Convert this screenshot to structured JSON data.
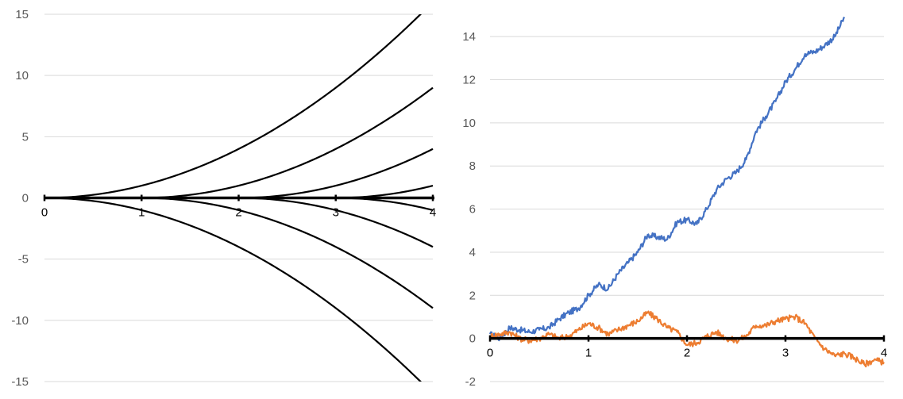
{
  "chart_data": [
    {
      "type": "line",
      "title": "",
      "xlabel": "",
      "ylabel": "",
      "xlim": [
        0,
        4
      ],
      "ylim": [
        -15,
        15
      ],
      "y_ticks": [
        15,
        10,
        5,
        0,
        -5,
        -10,
        -15
      ],
      "x_ticks": [
        0,
        1,
        2,
        3,
        4
      ],
      "grid": "horizontal",
      "legend": "none",
      "axis_color": "#000000",
      "series_color": "#000000",
      "series": [
        {
          "upward": true,
          "start": 0,
          "values_at_x": {
            "0": 0,
            "1": 1,
            "2": 4,
            "3": 9,
            "3.87": 15
          }
        },
        {
          "upward": true,
          "start": 1,
          "values_at_x": {
            "1": 0,
            "2": 1,
            "3": 4,
            "4": 9
          }
        },
        {
          "upward": true,
          "start": 2,
          "values_at_x": {
            "2": 0,
            "3": 1,
            "4": 4
          }
        },
        {
          "upward": true,
          "start": 3,
          "values_at_x": {
            "3": 0,
            "4": 1
          }
        },
        {
          "upward": false,
          "start": 3,
          "values_at_x": {
            "3": 0,
            "4": -1
          }
        },
        {
          "upward": false,
          "start": 2,
          "values_at_x": {
            "2": 0,
            "3": -1,
            "4": -4
          }
        },
        {
          "upward": false,
          "start": 1,
          "values_at_x": {
            "1": 0,
            "2": -1,
            "3": -4,
            "4": -9
          }
        },
        {
          "upward": false,
          "start": 0,
          "values_at_x": {
            "0": 0,
            "1": -1,
            "2": -4,
            "3": -9,
            "3.87": -15
          }
        }
      ]
    },
    {
      "type": "line",
      "title": "",
      "xlabel": "",
      "ylabel": "",
      "xlim": [
        0,
        4
      ],
      "ylim": [
        -2,
        15
      ],
      "y_ticks": [
        14,
        12,
        10,
        8,
        6,
        4,
        2,
        0,
        -2
      ],
      "x_ticks": [
        0,
        1,
        2,
        3,
        4
      ],
      "grid": "horizontal",
      "legend": "none",
      "axis_color": "#000000",
      "series": [
        {
          "color": "#4472C4",
          "x": [
            0,
            0.1,
            0.2,
            0.3,
            0.4,
            0.5,
            0.6,
            0.7,
            0.8,
            0.9,
            1.0,
            1.1,
            1.2,
            1.3,
            1.4,
            1.5,
            1.6,
            1.7,
            1.8,
            1.9,
            2.0,
            2.1,
            2.2,
            2.3,
            2.4,
            2.5,
            2.6,
            2.7,
            2.8,
            2.9,
            3.0,
            3.1,
            3.2,
            3.3,
            3.4,
            3.5,
            3.6
          ],
          "y": [
            0.2,
            0.0,
            0.5,
            0.4,
            0.3,
            0.4,
            0.5,
            0.9,
            1.2,
            1.4,
            2.0,
            2.5,
            2.3,
            3.0,
            3.5,
            4.0,
            4.8,
            4.7,
            4.6,
            5.4,
            5.5,
            5.3,
            6.0,
            6.9,
            7.4,
            7.7,
            8.3,
            9.6,
            10.3,
            11.0,
            11.9,
            12.5,
            13.2,
            13.3,
            13.6,
            14.0,
            14.9
          ]
        },
        {
          "color": "#ED7D31",
          "x": [
            0,
            0.1,
            0.2,
            0.3,
            0.4,
            0.5,
            0.6,
            0.7,
            0.8,
            0.9,
            1.0,
            1.1,
            1.2,
            1.3,
            1.4,
            1.5,
            1.6,
            1.7,
            1.8,
            1.9,
            2.0,
            2.1,
            2.2,
            2.3,
            2.4,
            2.5,
            2.6,
            2.7,
            2.8,
            2.9,
            3.0,
            3.1,
            3.2,
            3.3,
            3.4,
            3.5,
            3.6,
            3.7,
            3.8,
            3.9,
            4.0
          ],
          "y": [
            0.1,
            0.2,
            0.3,
            0.0,
            -0.1,
            0.0,
            0.2,
            0.0,
            0.1,
            0.4,
            0.7,
            0.5,
            0.2,
            0.4,
            0.6,
            0.8,
            1.2,
            0.9,
            0.5,
            0.3,
            -0.3,
            -0.2,
            0.1,
            0.3,
            0.0,
            -0.1,
            0.1,
            0.6,
            0.6,
            0.8,
            0.9,
            1.0,
            0.7,
            0.0,
            -0.5,
            -0.8,
            -0.7,
            -0.9,
            -1.2,
            -1.0,
            -1.1
          ]
        }
      ]
    }
  ]
}
